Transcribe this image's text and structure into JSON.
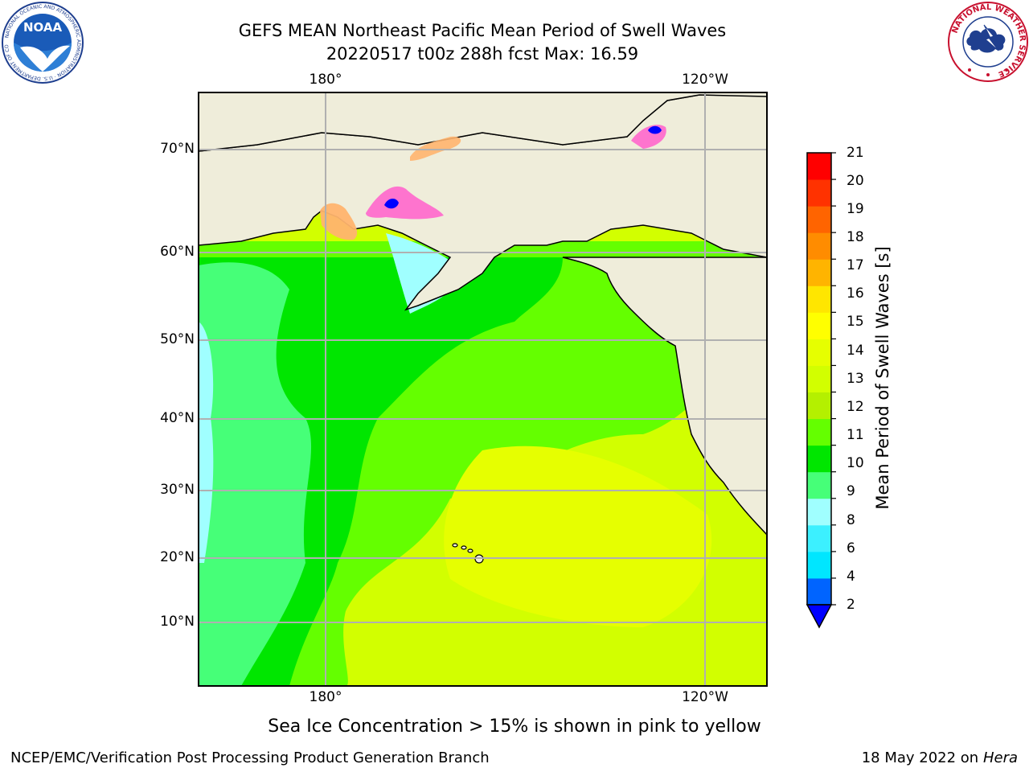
{
  "title": {
    "line1": "GEFS MEAN Northeast Pacific Mean Period of Swell Waves",
    "line2": "20220517 t00z 288h fcst   Max: 16.59"
  },
  "map": {
    "lon_labels_top": [
      "180°",
      "120°W"
    ],
    "lon_labels_bottom": [
      "180°",
      "120°W"
    ],
    "lat_labels": [
      "70°N",
      "60°N",
      "50°N",
      "40°N",
      "30°N",
      "20°N",
      "10°N"
    ],
    "land_color": "#efedda",
    "grid_color": "#b0b0b0"
  },
  "colorbar": {
    "label": "Mean Period of Swell Waves [s]",
    "ticks": [
      "2",
      "4",
      "6",
      "8",
      "9",
      "10",
      "11",
      "12",
      "13",
      "14",
      "15",
      "16",
      "17",
      "18",
      "19",
      "20",
      "21"
    ],
    "colors": [
      "#0064ff",
      "#00e6ff",
      "#3cf0ff",
      "#a0ffff",
      "#46ff78",
      "#00e600",
      "#64ff00",
      "#b4f000",
      "#d2ff00",
      "#e6ff00",
      "#ffff00",
      "#ffe600",
      "#ffb400",
      "#ff8c00",
      "#ff6400",
      "#ff3200",
      "#ff0000"
    ],
    "extend_color": "#0000ff"
  },
  "footnote": "Sea Ice Concentration > 15% is shown in pink to yellow",
  "footer": {
    "left": "NCEP/EMC/Verification Post Processing Product Generation Branch",
    "right_date": "18 May 2022 on",
    "right_host": "Hera"
  },
  "logos": {
    "noaa": "NOAA",
    "noaa_ring": "NATIONAL OCEANIC AND ATMOSPHERIC ADMINISTRATION · U.S. DEPARTMENT OF COMMERCE",
    "nws_ring": "NATIONAL WEATHER SERVICE"
  }
}
